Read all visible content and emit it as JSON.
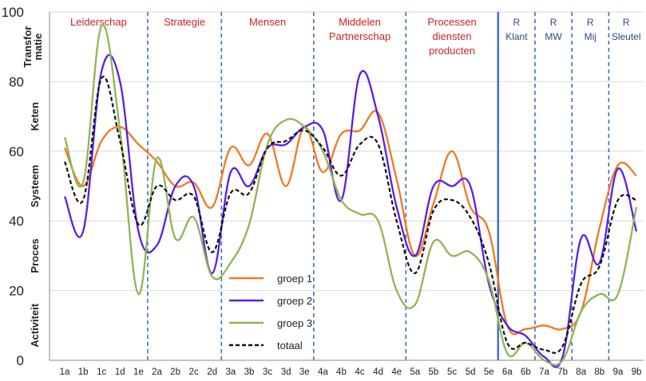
{
  "chart_data": {
    "type": "line",
    "title": "",
    "xlabel": "",
    "ylabel": "",
    "ylim": [
      0,
      100
    ],
    "yticks": [
      "0",
      "20",
      "40",
      "60",
      "80",
      "100"
    ],
    "categories": [
      "1a",
      "1b",
      "1c",
      "1d",
      "1e",
      "2a",
      "2b",
      "2c",
      "2d",
      "3a",
      "3b",
      "3c",
      "3d",
      "3e",
      "4a",
      "4b",
      "4c",
      "4d",
      "4e",
      "5a",
      "5b",
      "5c",
      "5d",
      "5e",
      "6a",
      "6b",
      "7a",
      "7b",
      "8a",
      "8b",
      "9a",
      "9b"
    ],
    "y_level_labels": [
      {
        "text": "Activiteit",
        "y": 10
      },
      {
        "text": "Proces",
        "y": 30
      },
      {
        "text": "Systeem",
        "y": 50
      },
      {
        "text": "Keten",
        "y": 70
      },
      {
        "text": "Transfor matie",
        "y": 90
      }
    ],
    "sections": [
      {
        "label": "Leiderschap",
        "first": "1a",
        "last": "1e",
        "color": "red"
      },
      {
        "label": "Strategie",
        "first": "2a",
        "last": "2d",
        "color": "red"
      },
      {
        "label": "Mensen",
        "first": "3a",
        "last": "3e",
        "color": "red"
      },
      {
        "label": "Middelen Partnerschap",
        "first": "4a",
        "last": "4e",
        "color": "red"
      },
      {
        "label": "Processen diensten producten",
        "first": "5a",
        "last": "5e",
        "color": "red"
      },
      {
        "label": "R Klant",
        "first": "6a",
        "last": "6b",
        "color": "blue"
      },
      {
        "label": "R MW",
        "first": "7a",
        "last": "7b",
        "color": "blue"
      },
      {
        "label": "R Mij",
        "first": "8a",
        "last": "8b",
        "color": "blue"
      },
      {
        "label": "R Sleutel",
        "first": "9a",
        "last": "9b",
        "color": "blue"
      }
    ],
    "series": [
      {
        "name": "groep 1",
        "color": "#f07820",
        "dash": "",
        "values": [
          61,
          50,
          63,
          67,
          62,
          57,
          50,
          51,
          44,
          61,
          56,
          65,
          50,
          67,
          54,
          65,
          66,
          71,
          52,
          30,
          45,
          60,
          44,
          37,
          10,
          9,
          10,
          9,
          14,
          38,
          56,
          53
        ]
      },
      {
        "name": "groep 2",
        "color": "#5a1ee8",
        "dash": "",
        "values": [
          47,
          37,
          83,
          80,
          37,
          33,
          50,
          50,
          25,
          54,
          50,
          61,
          62,
          67,
          66,
          46,
          82,
          70,
          44,
          30,
          50,
          50,
          50,
          22,
          10,
          7,
          1,
          1,
          35,
          28,
          55,
          37
        ]
      },
      {
        "name": "groep 3",
        "color": "#8fb555",
        "dash": "",
        "values": [
          64,
          51,
          96,
          66,
          19,
          58,
          35,
          41,
          24,
          28,
          39,
          62,
          69,
          67,
          60,
          46,
          42,
          40,
          20,
          16,
          34,
          30,
          31,
          23,
          2,
          5,
          0,
          0,
          14,
          19,
          19,
          44
        ]
      },
      {
        "name": "totaal",
        "color": "#111111",
        "dash": "5,3",
        "values": [
          57,
          46,
          81,
          63,
          39,
          50,
          46,
          47,
          31,
          48,
          48,
          61,
          63,
          66,
          61,
          53,
          62,
          62,
          40,
          25,
          43,
          46,
          41,
          28,
          5,
          5,
          3,
          4,
          22,
          27,
          46,
          46
        ]
      }
    ]
  }
}
